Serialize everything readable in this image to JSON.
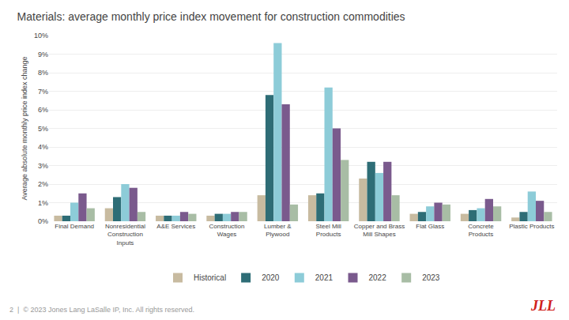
{
  "chart_data": {
    "type": "bar",
    "title": "Materials: average monthly price index movement for construction commodities",
    "ylabel": "Average absolute monthly price index change",
    "categories": [
      "Final Demand",
      "Nonresidential\nConstruction\nInputs",
      "A&E Services",
      "Construction\nWages",
      "Lumber &\nPlywood",
      "Steel Mill\nProducts",
      "Copper and Brass\nMill Shapes",
      "Flat Glass",
      "Concrete\nProducts",
      "Plastic Products"
    ],
    "series": [
      {
        "name": "Historical",
        "color": "#c8bba0",
        "values": [
          0.003,
          0.007,
          0.003,
          0.003,
          0.014,
          0.014,
          0.023,
          0.004,
          0.004,
          0.002
        ]
      },
      {
        "name": "2020",
        "color": "#2e6d76",
        "values": [
          0.003,
          0.013,
          0.003,
          0.004,
          0.068,
          0.015,
          0.032,
          0.005,
          0.006,
          0.005
        ]
      },
      {
        "name": "2021",
        "color": "#8dccd8",
        "values": [
          0.01,
          0.02,
          0.003,
          0.004,
          0.096,
          0.072,
          0.026,
          0.008,
          0.007,
          0.016
        ]
      },
      {
        "name": "2022",
        "color": "#7a5a8d",
        "values": [
          0.015,
          0.018,
          0.005,
          0.005,
          0.063,
          0.05,
          0.032,
          0.01,
          0.012,
          0.011
        ]
      },
      {
        "name": "2023",
        "color": "#a8bda5",
        "values": [
          0.007,
          0.005,
          0.004,
          0.005,
          0.009,
          0.033,
          0.014,
          0.009,
          0.008,
          0.005
        ]
      }
    ],
    "ylim": [
      0,
      0.1
    ],
    "yticks": [
      {
        "value": 0,
        "label": "0%"
      },
      {
        "value": 0.01,
        "label": "1%"
      },
      {
        "value": 0.02,
        "label": "2%"
      },
      {
        "value": 0.03,
        "label": "3%"
      },
      {
        "value": 0.04,
        "label": "4%"
      },
      {
        "value": 0.05,
        "label": "5%"
      },
      {
        "value": 0.06,
        "label": "6%"
      },
      {
        "value": 0.07,
        "label": "7%"
      },
      {
        "value": 0.08,
        "label": "8%"
      },
      {
        "value": 0.09,
        "label": "9%"
      },
      {
        "value": 0.1,
        "label": "10%"
      }
    ],
    "grid": true,
    "legend": "bottom",
    "annotations": [
      {
        "text": "2  |  © 2023 Jones Lang LaSalle IP, Inc. All rights reserved."
      },
      {
        "text": "JLL",
        "color": "#d0201a"
      }
    ]
  }
}
